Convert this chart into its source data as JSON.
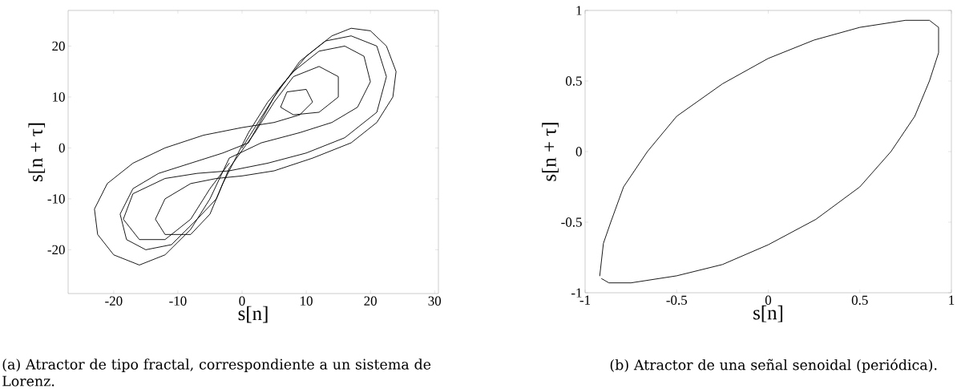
{
  "chart_data": [
    {
      "type": "line",
      "xlabel": "s[n]",
      "ylabel": "s[n + τ]",
      "annotations": [
        "(a)  Atractor de tipo fractal, correspondiente a un sistema de Lorenz."
      ],
      "xlim": [
        -27.1,
        30.6
      ],
      "ylim": [
        -28.6,
        27
      ],
      "xticks": [
        -20,
        -10,
        0,
        10,
        20,
        30
      ],
      "yticks": [
        -20,
        -10,
        0,
        10,
        20
      ],
      "series": [
        {
          "color": "#000000",
          "x": [
            0,
            3,
            6,
            10,
            14,
            17,
            20,
            22.5,
            24,
            23.5,
            21,
            17,
            11,
            5,
            0,
            -4,
            -8,
            -12,
            -13.5,
            -12,
            -8,
            -5,
            -3,
            -1,
            1,
            4,
            8,
            12,
            16,
            19,
            20,
            18,
            14,
            9,
            3,
            -2,
            -5,
            -8,
            -12,
            -16,
            -20,
            -22.5,
            -23,
            -21,
            -17,
            -12,
            -6,
            0,
            5,
            9,
            11,
            10,
            7,
            6,
            8,
            12,
            15,
            15,
            12,
            8,
            5,
            2,
            -2,
            -4,
            -7,
            -11,
            -15,
            -18,
            -19,
            -17,
            -13,
            -8,
            -3,
            1,
            5,
            9,
            13,
            17,
            21,
            22.5,
            21,
            16,
            10,
            4,
            -2,
            -7,
            -12,
            -17,
            -18.5,
            -16,
            -12,
            -8,
            -5,
            -2
          ],
          "values": [
            0,
            6,
            12,
            18,
            22,
            23.5,
            23,
            20,
            15,
            10,
            5,
            1,
            -2,
            -4.5,
            -5.5,
            -6,
            -7,
            -10,
            -14,
            -17,
            -17,
            -13,
            -7,
            -2,
            3,
            9,
            15,
            19,
            20,
            18,
            13,
            8,
            5,
            3,
            1,
            -2,
            -10,
            -16,
            -21,
            -23,
            -21,
            -17,
            -12,
            -7,
            -3,
            0,
            2.5,
            4,
            5,
            6.5,
            9,
            11.5,
            11,
            8,
            6.5,
            7,
            10,
            14,
            16,
            14,
            9,
            3,
            -4,
            -10,
            -14,
            -19,
            -20,
            -18,
            -13,
            -8,
            -5,
            -3,
            -1,
            1,
            10,
            17,
            21,
            22,
            20,
            14,
            7,
            2,
            -1,
            -3,
            -4.5,
            -5,
            -6,
            -9,
            -14,
            -18,
            -18,
            -14,
            -8,
            -3
          ]
        }
      ]
    },
    {
      "type": "line",
      "xlabel": "s[n]",
      "ylabel": "s[n + τ]",
      "annotations": [
        "(b)  Atractor de una señal senoidal (periódica)."
      ],
      "xlim": [
        -1,
        1
      ],
      "ylim": [
        -1,
        1
      ],
      "xticks": [
        -1,
        -0.5,
        0,
        0.5,
        1
      ],
      "yticks": [
        -1,
        -0.5,
        0,
        0.5,
        1
      ],
      "series": [
        {
          "color": "#000000",
          "x": [
            -0.92,
            -0.9,
            -0.86,
            -0.79,
            -0.66,
            -0.5,
            -0.25,
            0,
            0.25,
            0.5,
            0.75,
            0.88,
            0.93,
            0.93,
            0.88,
            0.8,
            0.67,
            0.5,
            0.26,
            0,
            -0.25,
            -0.5,
            -0.75,
            -0.87,
            -0.91
          ],
          "values": [
            -0.88,
            -0.65,
            -0.5,
            -0.25,
            0,
            0.25,
            0.48,
            0.66,
            0.79,
            0.88,
            0.93,
            0.93,
            0.88,
            0.7,
            0.5,
            0.25,
            0,
            -0.25,
            -0.48,
            -0.66,
            -0.8,
            -0.88,
            -0.93,
            -0.93,
            -0.9
          ]
        }
      ]
    }
  ]
}
